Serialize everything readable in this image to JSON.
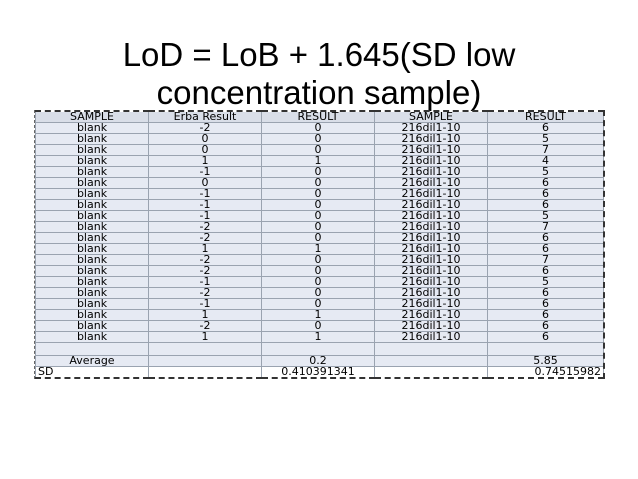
{
  "slide": {
    "title_line1": "LoD = LoB + 1.645(SD low",
    "title_line2": "concentration sample)"
  },
  "table": {
    "headers": [
      "SAMPLE",
      "Erba Result",
      "RESULT",
      "SAMPLE",
      "RESULT"
    ],
    "rows": [
      [
        "blank",
        "-2",
        "0",
        "216dil1-10",
        "6"
      ],
      [
        "blank",
        "0",
        "0",
        "216dil1-10",
        "5"
      ],
      [
        "blank",
        "0",
        "0",
        "216dil1-10",
        "7"
      ],
      [
        "blank",
        "1",
        "1",
        "216dil1-10",
        "4"
      ],
      [
        "blank",
        "-1",
        "0",
        "216dil1-10",
        "5"
      ],
      [
        "blank",
        "0",
        "0",
        "216dil1-10",
        "6"
      ],
      [
        "blank",
        "-1",
        "0",
        "216dil1-10",
        "6"
      ],
      [
        "blank",
        "-1",
        "0",
        "216dil1-10",
        "6"
      ],
      [
        "blank",
        "-1",
        "0",
        "216dil1-10",
        "5"
      ],
      [
        "blank",
        "-2",
        "0",
        "216dil1-10",
        "7"
      ],
      [
        "blank",
        "-2",
        "0",
        "216dil1-10",
        "6"
      ],
      [
        "blank",
        "1",
        "1",
        "216dil1-10",
        "6"
      ],
      [
        "blank",
        "-2",
        "0",
        "216dil1-10",
        "7"
      ],
      [
        "blank",
        "-2",
        "0",
        "216dil1-10",
        "6"
      ],
      [
        "blank",
        "-1",
        "0",
        "216dil1-10",
        "5"
      ],
      [
        "blank",
        "-2",
        "0",
        "216dil1-10",
        "6"
      ],
      [
        "blank",
        "-1",
        "0",
        "216dil1-10",
        "6"
      ],
      [
        "blank",
        "1",
        "1",
        "216dil1-10",
        "6"
      ],
      [
        "blank",
        "-2",
        "0",
        "216dil1-10",
        "6"
      ],
      [
        "blank",
        "1",
        "1",
        "216dil1-10",
        "6"
      ]
    ],
    "average": {
      "label": "Average",
      "result1": "0.2",
      "result2": "5.85"
    },
    "sd": {
      "label": "SD",
      "result1": "0.410391341",
      "result2": "0.74515982"
    }
  }
}
